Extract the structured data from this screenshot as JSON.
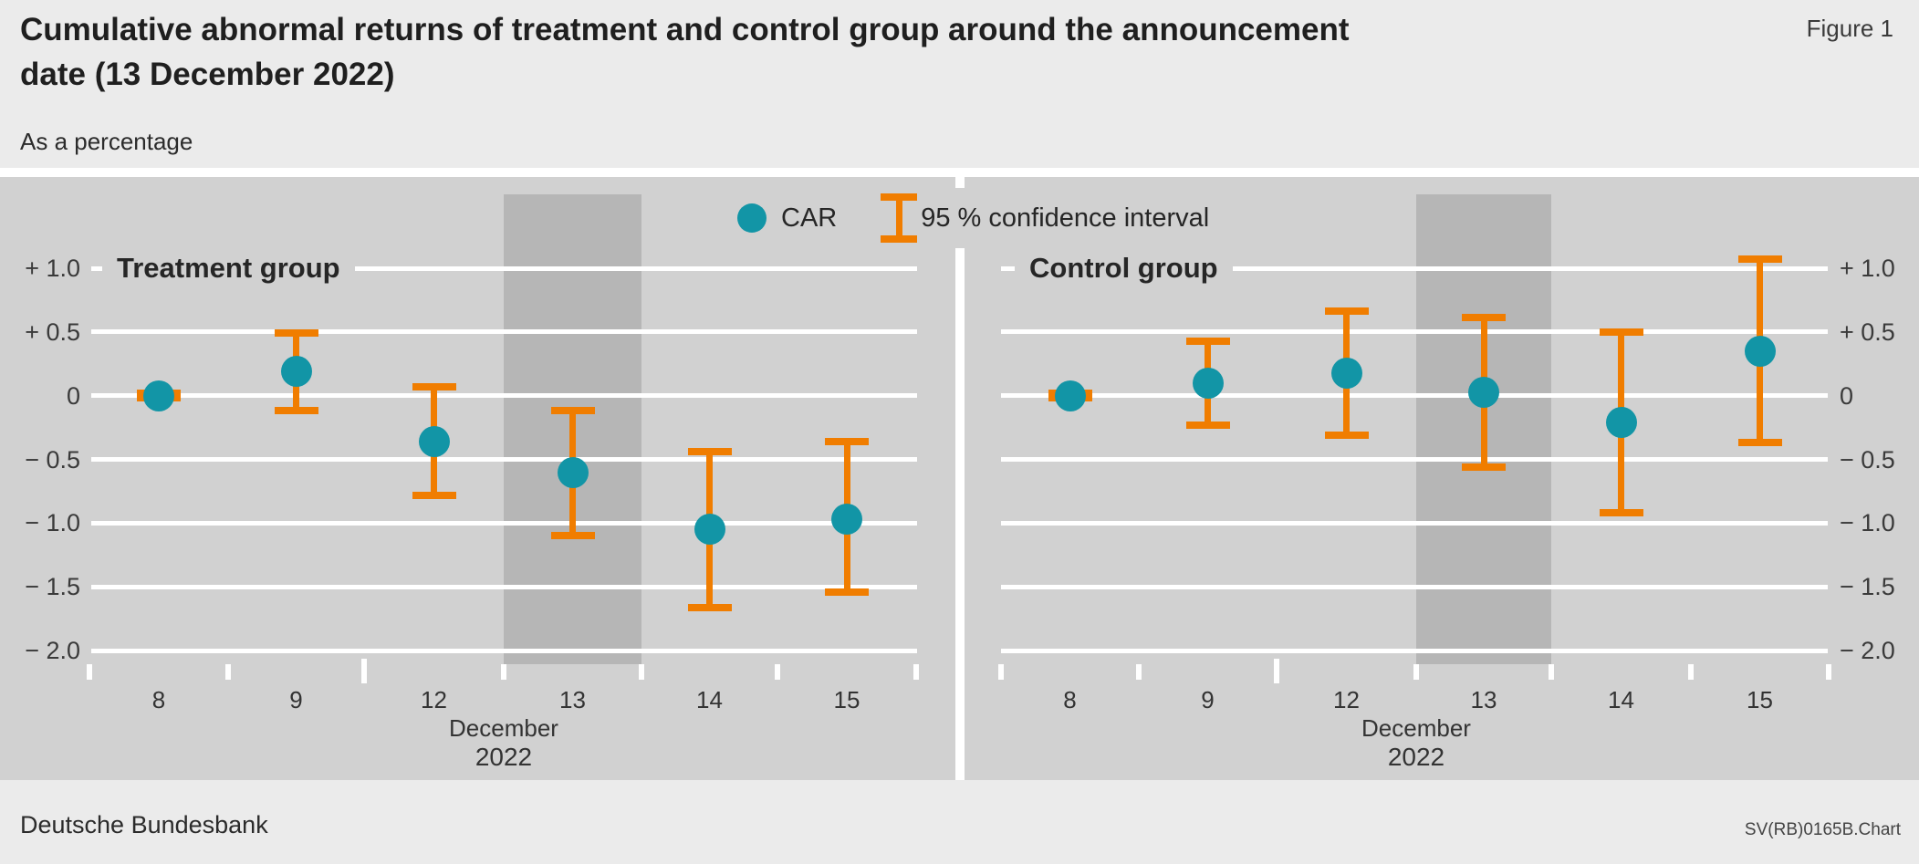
{
  "header": {
    "title": "Cumulative abnormal returns of treatment and control group around the announcement date (13 December 2022)",
    "figure_label": "Figure 1",
    "subtitle": "As a percentage"
  },
  "legend": {
    "car_label": "CAR",
    "ci_label": "95 % confidence interval"
  },
  "footer": {
    "source": "Deutsche Bundesbank",
    "chart_id": "SV(RB)0165B.Chart"
  },
  "colors": {
    "car_dot": "#1295a6",
    "ci_bar": "#f07d00",
    "plot_bg": "#d1d1d1",
    "highlight_band": "#b6b6b6",
    "page_bg": "#ebebeb",
    "grid": "#ffffff",
    "text": "#262626"
  },
  "chart_data": [
    {
      "type": "scatter",
      "title": "Treatment group",
      "categories": [
        "8",
        "9",
        "12",
        "13",
        "14",
        "15"
      ],
      "x_axis_label_month": "December",
      "x_axis_label_year": "2022",
      "series": [
        {
          "name": "CAR",
          "values": [
            0.0,
            0.19,
            -0.36,
            -0.6,
            -1.05,
            -0.97
          ]
        }
      ],
      "ci_low": [
        -0.02,
        -0.12,
        -0.78,
        -1.1,
        -1.66,
        -1.54
      ],
      "ci_high": [
        0.02,
        0.49,
        0.07,
        -0.12,
        -0.44,
        -0.36
      ],
      "ylim": [
        -2.0,
        1.0
      ],
      "ytick_values": [
        1.0,
        0.5,
        0,
        -0.5,
        -1.0,
        -1.5,
        -2.0
      ],
      "ytick_labels": [
        "+ 1.0",
        "+ 0.5",
        "0",
        "− 0.5",
        "− 1.0",
        "− 1.5",
        "− 2.0"
      ],
      "ytick_side": "left",
      "highlight_category": "13",
      "grid": true,
      "legend_position": "top-center"
    },
    {
      "type": "scatter",
      "title": "Control group",
      "categories": [
        "8",
        "9",
        "12",
        "13",
        "14",
        "15"
      ],
      "x_axis_label_month": "December",
      "x_axis_label_year": "2022",
      "series": [
        {
          "name": "CAR",
          "values": [
            0.0,
            0.1,
            0.18,
            0.03,
            -0.21,
            0.35
          ]
        }
      ],
      "ci_low": [
        -0.02,
        -0.23,
        -0.31,
        -0.56,
        -0.92,
        -0.37
      ],
      "ci_high": [
        0.02,
        0.43,
        0.66,
        0.61,
        0.5,
        1.07
      ],
      "ylim": [
        -2.0,
        1.0
      ],
      "ytick_values": [
        1.0,
        0.5,
        0,
        -0.5,
        -1.0,
        -1.5,
        -2.0
      ],
      "ytick_labels": [
        "+ 1.0",
        "+ 0.5",
        "0",
        "− 0.5",
        "− 1.0",
        "− 1.5",
        "− 2.0"
      ],
      "ytick_side": "right",
      "highlight_category": "13",
      "grid": true,
      "legend_position": "top-center"
    }
  ]
}
